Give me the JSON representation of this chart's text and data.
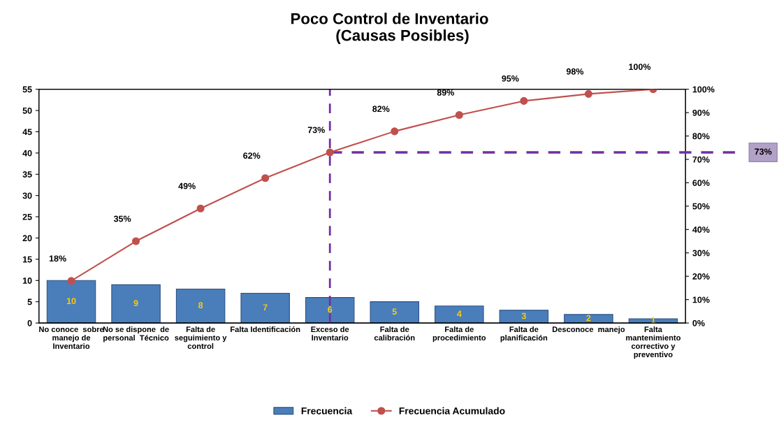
{
  "chart_data": {
    "type": "bar",
    "title": "Poco Control de Inventario\n      (Causas Posibles)",
    "categories": [
      "No conoce  sobre\nmanejo de\nInventario",
      "No se dispone  de\npersonal  Técnico",
      "Falta de\nseguimiento y\ncontrol",
      "Falta Identificación",
      "Exceso de\nInventario",
      "Falta de\ncalibración",
      "Falta de\nprocedimiento",
      "Falta de\nplanificación",
      "Desconoce  manejo",
      "Falta\nmantenimiento\ncorrectivo y\npreventivo"
    ],
    "series": [
      {
        "name": "Frecuencia",
        "color": "#4a7ebb",
        "values": [
          10,
          9,
          8,
          7,
          6,
          5,
          4,
          3,
          2,
          1
        ],
        "value_labels": [
          "10",
          "9",
          "8",
          "7",
          "6",
          "5",
          "4",
          "3",
          "2",
          "1"
        ]
      },
      {
        "name": "Frecuencia Acumulado",
        "type": "line",
        "axis": "y2",
        "color": "#c0504d",
        "values": [
          18,
          35,
          49,
          62,
          73,
          82,
          89,
          95,
          98,
          100
        ],
        "value_labels": [
          "18%",
          "35%",
          "49%",
          "62%",
          "73%",
          "82%",
          "89%",
          "95%",
          "98%",
          "100%"
        ]
      }
    ],
    "ylim": [
      0,
      55
    ],
    "yticks": [
      0,
      5,
      10,
      15,
      20,
      25,
      30,
      35,
      40,
      45,
      50,
      55
    ],
    "y2lim": [
      0,
      100
    ],
    "y2ticks": [
      {
        "value": 0,
        "label": "0%"
      },
      {
        "value": 10,
        "label": "10%"
      },
      {
        "value": 20,
        "label": "20%"
      },
      {
        "value": 30,
        "label": "30%"
      },
      {
        "value": 40,
        "label": "40%"
      },
      {
        "value": 50,
        "label": "50%"
      },
      {
        "value": 60,
        "label": "60%"
      },
      {
        "value": 70,
        "label": "70%"
      },
      {
        "value": 80,
        "label": "80%"
      },
      {
        "value": 90,
        "label": "90%"
      },
      {
        "value": 100,
        "label": "100%"
      }
    ],
    "ref_lines": [
      {
        "axis": "x",
        "value": "Exceso de\nInventario",
        "color": "#7030a0",
        "line_style": "dashed"
      },
      {
        "axis": "y2",
        "value": 73,
        "label": "73%",
        "color": "#7030a0",
        "line_style": "dashed"
      }
    ],
    "marker": "circle",
    "legend": "bottom",
    "grid": false
  }
}
